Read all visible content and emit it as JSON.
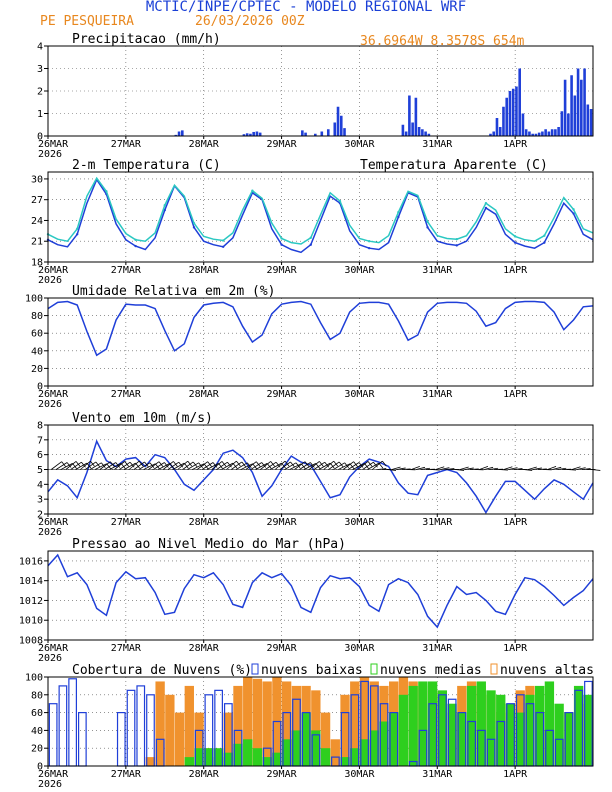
{
  "header": {
    "title": "MCTIC/INPE/CPTEC - MODELO REGIONAL WRF",
    "station": "PE PESQUEIRA",
    "run": "26/03/2026 00Z",
    "location": "36.6964W 8.3578S 654m"
  },
  "colors": {
    "blue": "#1f3fd8",
    "cyan": "#2bc8c2",
    "orange": "#f0922e",
    "green": "#2ecf1e",
    "grid": "#555555"
  },
  "time_axis": {
    "labels": [
      "26MAR",
      "27MAR",
      "28MAR",
      "29MAR",
      "30MAR",
      "31MAR",
      "1APR"
    ],
    "year": "2026",
    "hours_total": 168,
    "step_hours": 24
  },
  "chart_data": [
    {
      "id": "precip",
      "type": "bar",
      "title": "Precipitacao (mm/h)",
      "ylim": [
        0,
        4
      ],
      "yticks": [
        0,
        1,
        2,
        3,
        4
      ],
      "x": [
        39,
        40,
        41,
        60,
        61,
        62,
        63,
        64,
        65,
        78,
        79,
        82,
        84,
        86,
        88,
        89,
        90,
        91,
        109,
        110,
        111,
        112,
        113,
        114,
        115,
        116,
        117,
        136,
        137,
        138,
        139,
        140,
        141,
        142,
        143,
        144,
        145,
        146,
        147,
        148,
        149,
        150,
        151,
        152,
        153,
        154,
        155,
        156,
        157,
        158,
        159,
        160,
        161,
        162,
        163,
        164,
        165,
        166,
        167
      ],
      "values": [
        0.05,
        0.2,
        0.25,
        0.08,
        0.12,
        0.1,
        0.18,
        0.2,
        0.15,
        0.25,
        0.15,
        0.1,
        0.2,
        0.3,
        0.6,
        1.3,
        0.9,
        0.35,
        0.5,
        0.2,
        1.8,
        0.6,
        1.7,
        0.4,
        0.3,
        0.2,
        0.1,
        0.1,
        0.2,
        0.8,
        0.4,
        1.3,
        1.7,
        2.0,
        2.1,
        2.2,
        3.0,
        1.0,
        0.3,
        0.2,
        0.1,
        0.1,
        0.15,
        0.2,
        0.3,
        0.2,
        0.3,
        0.3,
        0.4,
        1.1,
        2.5,
        1.0,
        2.7,
        1.8,
        3.0,
        2.5,
        3.0,
        1.4,
        1.2
      ]
    },
    {
      "id": "temp",
      "type": "line",
      "title": "2-m Temperatura (C)",
      "legend2": "Temperatura Aparente (C)",
      "ylim": [
        18,
        31
      ],
      "yticks": [
        18,
        21,
        24,
        27,
        30
      ],
      "x": [
        0,
        3,
        6,
        9,
        12,
        15,
        18,
        21,
        24,
        27,
        30,
        33,
        36,
        39,
        42,
        45,
        48,
        51,
        54,
        57,
        60,
        63,
        66,
        69,
        72,
        75,
        78,
        81,
        84,
        87,
        90,
        93,
        96,
        99,
        102,
        105,
        108,
        111,
        114,
        117,
        120,
        123,
        126,
        129,
        132,
        135,
        138,
        141,
        144,
        147,
        150,
        153,
        156,
        159,
        162,
        165,
        168
      ],
      "series": [
        {
          "name": "2-m Temperatura (C)",
          "values": [
            21.2,
            20.5,
            20.2,
            22.0,
            26.5,
            29.9,
            27.8,
            23.5,
            21.2,
            20.3,
            19.8,
            21.5,
            25.5,
            29.0,
            27.3,
            23.0,
            21.0,
            20.5,
            20.2,
            21.5,
            24.8,
            28.0,
            27.0,
            22.8,
            20.5,
            19.8,
            19.4,
            20.5,
            24.0,
            27.5,
            26.5,
            22.5,
            20.5,
            20.0,
            19.8,
            20.8,
            24.5,
            28.0,
            27.4,
            23.0,
            21.0,
            20.6,
            20.4,
            21.0,
            23.0,
            25.8,
            24.9,
            22.0,
            20.8,
            20.3,
            20.0,
            20.8,
            23.5,
            26.5,
            25.0,
            22.0,
            21.2
          ]
        },
        {
          "name": "Temperatura Aparente (C)",
          "values": [
            22.0,
            21.3,
            21.0,
            22.8,
            27.5,
            30.1,
            28.2,
            24.2,
            22.1,
            21.2,
            21.0,
            22.2,
            26.2,
            29.1,
            27.5,
            23.6,
            21.7,
            21.3,
            21.1,
            22.2,
            25.5,
            28.3,
            27.2,
            23.6,
            21.4,
            20.8,
            20.6,
            21.5,
            24.8,
            28.0,
            26.8,
            23.3,
            21.4,
            21.0,
            20.8,
            21.8,
            25.2,
            28.2,
            27.6,
            23.8,
            21.8,
            21.4,
            21.3,
            21.8,
            23.8,
            26.5,
            25.5,
            22.8,
            21.7,
            21.2,
            21.0,
            21.8,
            24.4,
            27.3,
            25.6,
            22.8,
            22.2
          ]
        }
      ]
    },
    {
      "id": "rh",
      "type": "line",
      "title": "Umidade Relativa em 2m (%)",
      "ylim": [
        0,
        100
      ],
      "yticks": [
        0,
        20,
        40,
        60,
        80,
        100
      ],
      "x": [
        0,
        3,
        6,
        9,
        12,
        15,
        18,
        21,
        24,
        27,
        30,
        33,
        36,
        39,
        42,
        45,
        48,
        51,
        54,
        57,
        60,
        63,
        66,
        69,
        72,
        75,
        78,
        81,
        84,
        87,
        90,
        93,
        96,
        99,
        102,
        105,
        108,
        111,
        114,
        117,
        120,
        123,
        126,
        129,
        132,
        135,
        138,
        141,
        144,
        147,
        150,
        153,
        156,
        159,
        162,
        165,
        168
      ],
      "values": [
        88,
        95,
        96,
        92,
        62,
        35,
        42,
        75,
        93,
        92,
        92,
        88,
        63,
        40,
        48,
        78,
        92,
        94,
        95,
        90,
        68,
        50,
        58,
        82,
        93,
        95,
        96,
        93,
        72,
        53,
        60,
        84,
        94,
        95,
        95,
        93,
        74,
        52,
        58,
        84,
        94,
        95,
        95,
        94,
        85,
        68,
        72,
        88,
        95,
        96,
        96,
        95,
        84,
        64,
        75,
        90,
        91
      ]
    },
    {
      "id": "wind",
      "type": "line",
      "title": "Vento em 10m (m/s)",
      "ylim": [
        2,
        8
      ],
      "yticks": [
        2,
        3,
        4,
        5,
        6,
        7,
        8
      ],
      "x": [
        0,
        3,
        6,
        9,
        12,
        15,
        18,
        21,
        24,
        27,
        30,
        33,
        36,
        39,
        42,
        45,
        48,
        51,
        54,
        57,
        60,
        63,
        66,
        69,
        72,
        75,
        78,
        81,
        84,
        87,
        90,
        93,
        96,
        99,
        102,
        105,
        108,
        111,
        114,
        117,
        120,
        123,
        126,
        129,
        132,
        135,
        138,
        141,
        144,
        147,
        150,
        153,
        156,
        159,
        162,
        165,
        168
      ],
      "values": [
        3.5,
        4.3,
        3.9,
        3.1,
        4.8,
        6.9,
        5.6,
        5.2,
        5.7,
        5.8,
        5.2,
        6.0,
        5.8,
        5.0,
        4.0,
        3.6,
        4.3,
        5.0,
        6.1,
        6.3,
        5.8,
        4.8,
        3.2,
        3.9,
        5.0,
        5.9,
        5.5,
        5.3,
        4.2,
        3.1,
        3.3,
        4.5,
        5.2,
        5.7,
        5.5,
        5.2,
        4.1,
        3.4,
        3.3,
        4.6,
        4.8,
        5.0,
        4.8,
        4.1,
        3.2,
        2.1,
        3.2,
        4.2,
        4.2,
        3.6,
        3.0,
        3.7,
        4.3,
        4.0,
        3.5,
        3.0,
        4.1
      ],
      "barbs_ref": 5
    },
    {
      "id": "pres",
      "type": "line",
      "title": "Pressao ao Nivel Medio do Mar (hPa)",
      "ylim": [
        1008,
        1017
      ],
      "yticks": [
        1008,
        1010,
        1012,
        1014,
        1016
      ],
      "x": [
        0,
        3,
        6,
        9,
        12,
        15,
        18,
        21,
        24,
        27,
        30,
        33,
        36,
        39,
        42,
        45,
        48,
        51,
        54,
        57,
        60,
        63,
        66,
        69,
        72,
        75,
        78,
        81,
        84,
        87,
        90,
        93,
        96,
        99,
        102,
        105,
        108,
        111,
        114,
        117,
        120,
        123,
        126,
        129,
        132,
        135,
        138,
        141,
        144,
        147,
        150,
        153,
        156,
        159,
        162,
        165,
        168
      ],
      "values": [
        1015.5,
        1016.6,
        1014.4,
        1014.8,
        1013.6,
        1011.2,
        1010.5,
        1013.8,
        1014.9,
        1014.2,
        1014.3,
        1012.8,
        1010.6,
        1010.8,
        1013.2,
        1014.6,
        1014.3,
        1014.8,
        1013.6,
        1011.6,
        1011.3,
        1013.8,
        1014.8,
        1014.3,
        1014.7,
        1013.5,
        1011.3,
        1010.8,
        1013.3,
        1014.5,
        1014.2,
        1014.3,
        1013.4,
        1011.5,
        1010.9,
        1013.6,
        1014.2,
        1013.8,
        1012.6,
        1010.4,
        1009.3,
        1011.5,
        1013.4,
        1012.6,
        1012.8,
        1012.0,
        1010.9,
        1010.6,
        1012.6,
        1014.3,
        1014.1,
        1013.4,
        1012.5,
        1011.5,
        1012.3,
        1013.0,
        1014.2
      ]
    },
    {
      "id": "cloud",
      "type": "bar",
      "title": "Cobertura de Nuvens (%)",
      "ylim": [
        0,
        100
      ],
      "yticks": [
        0,
        20,
        40,
        60,
        80,
        100
      ],
      "legend": [
        "nuvens baixas",
        "nuvens medias",
        "nuvens altas"
      ],
      "x": [
        0,
        3,
        6,
        9,
        12,
        15,
        18,
        21,
        24,
        27,
        30,
        33,
        36,
        39,
        42,
        45,
        48,
        51,
        54,
        57,
        60,
        63,
        66,
        69,
        72,
        75,
        78,
        81,
        84,
        87,
        90,
        93,
        96,
        99,
        102,
        105,
        108,
        111,
        114,
        117,
        120,
        123,
        126,
        129,
        132,
        135,
        138,
        141,
        144,
        147,
        150,
        153,
        156,
        159,
        162,
        165
      ],
      "series": [
        {
          "name": "nuvens baixas",
          "values": [
            70,
            90,
            98,
            60,
            0,
            0,
            0,
            60,
            85,
            90,
            80,
            30,
            0,
            0,
            0,
            40,
            80,
            85,
            70,
            40,
            0,
            0,
            20,
            50,
            60,
            75,
            60,
            35,
            0,
            10,
            60,
            80,
            95,
            90,
            70,
            60,
            0,
            5,
            40,
            70,
            80,
            75,
            60,
            50,
            40,
            30,
            50,
            70,
            80,
            70,
            60,
            40,
            30,
            60,
            85,
            95
          ]
        },
        {
          "name": "nuvens medias",
          "values": [
            0,
            0,
            0,
            0,
            0,
            0,
            0,
            0,
            0,
            0,
            0,
            0,
            0,
            0,
            10,
            20,
            20,
            20,
            15,
            25,
            30,
            20,
            10,
            15,
            30,
            40,
            60,
            40,
            20,
            0,
            10,
            20,
            30,
            40,
            50,
            60,
            80,
            90,
            95,
            95,
            85,
            70,
            60,
            90,
            95,
            85,
            80,
            70,
            60,
            80,
            90,
            95,
            70,
            60,
            90,
            80
          ]
        },
        {
          "name": "nuvens altas",
          "values": [
            0,
            0,
            0,
            0,
            0,
            0,
            0,
            0,
            0,
            0,
            10,
            95,
            80,
            60,
            90,
            60,
            20,
            10,
            60,
            90,
            100,
            98,
            95,
            100,
            95,
            90,
            90,
            85,
            60,
            30,
            80,
            95,
            100,
            95,
            90,
            95,
            100,
            95,
            90,
            85,
            80,
            60,
            90,
            95,
            90,
            80,
            60,
            70,
            85,
            90,
            60,
            40,
            30,
            60,
            80,
            70
          ]
        }
      ]
    }
  ]
}
